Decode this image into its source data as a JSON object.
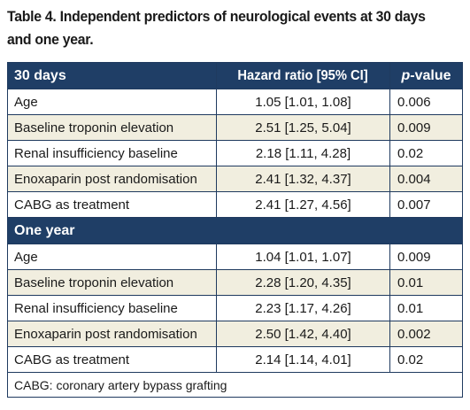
{
  "title": {
    "line1": "Table 4. Independent predictors of neurological events at 30 days",
    "line2": "and one year."
  },
  "header": {
    "col1": "30 days",
    "col2": "Hazard ratio [95% CI]",
    "col3_italic": "p",
    "col3_rest": "-value"
  },
  "sections": [
    {
      "label": "30 days",
      "rows": [
        {
          "predictor": "Age",
          "hr": "1.05 [1.01, 1.08]",
          "p": "0.006"
        },
        {
          "predictor": "Baseline troponin elevation",
          "hr": "2.51 [1.25, 5.04]",
          "p": "0.009"
        },
        {
          "predictor": "Renal insufficiency baseline",
          "hr": "2.18 [1.11, 4.28]",
          "p": "0.02"
        },
        {
          "predictor": "Enoxaparin post randomisation",
          "hr": "2.41 [1.32, 4.37]",
          "p": "0.004"
        },
        {
          "predictor": "CABG as treatment",
          "hr": "2.41 [1.27, 4.56]",
          "p": "0.007"
        }
      ]
    },
    {
      "label": "One year",
      "rows": [
        {
          "predictor": "Age",
          "hr": "1.04 [1.01, 1.07]",
          "p": "0.009"
        },
        {
          "predictor": "Baseline troponin elevation",
          "hr": "2.28 [1.20, 4.35]",
          "p": "0.01"
        },
        {
          "predictor": "Renal insufficiency baseline",
          "hr": "2.23 [1.17, 4.26]",
          "p": "0.01"
        },
        {
          "predictor": "Enoxaparin post randomisation",
          "hr": "2.50 [1.42, 4.40]",
          "p": "0.002"
        },
        {
          "predictor": "CABG as treatment",
          "hr": "2.14 [1.14, 4.01]",
          "p": "0.02"
        }
      ]
    }
  ],
  "footnote": "CABG: coronary artery bypass grafting",
  "colors": {
    "header_bg": "#1f3e66",
    "alt_row_bg": "#f1eedf",
    "border": "#1f3a5f"
  }
}
